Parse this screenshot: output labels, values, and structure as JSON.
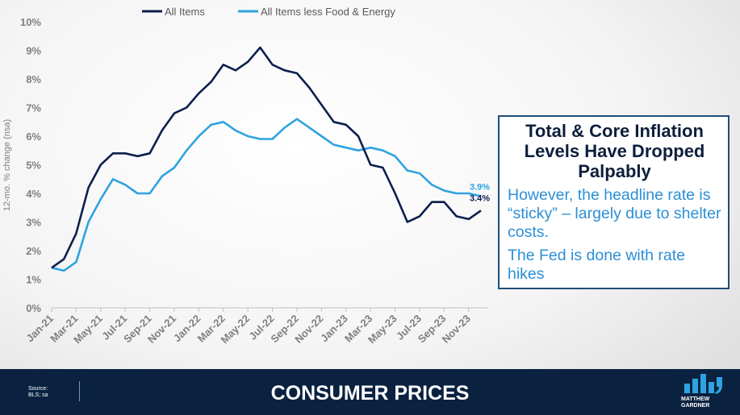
{
  "chart_data": {
    "type": "line",
    "title": "",
    "xlabel": "",
    "ylabel": "12-mo. % change (nsa)",
    "ylim": [
      0,
      10
    ],
    "y_ticks": [
      "0%",
      "1%",
      "2%",
      "3%",
      "4%",
      "5%",
      "6%",
      "7%",
      "8%",
      "9%",
      "10%"
    ],
    "x": [
      "Jan-21",
      "Feb-21",
      "Mar-21",
      "Apr-21",
      "May-21",
      "Jun-21",
      "Jul-21",
      "Aug-21",
      "Sep-21",
      "Oct-21",
      "Nov-21",
      "Dec-21",
      "Jan-22",
      "Feb-22",
      "Mar-22",
      "Apr-22",
      "May-22",
      "Jun-22",
      "Jul-22",
      "Aug-22",
      "Sep-22",
      "Oct-22",
      "Nov-22",
      "Dec-22",
      "Jan-23",
      "Feb-23",
      "Mar-23",
      "Apr-23",
      "May-23",
      "Jun-23",
      "Jul-23",
      "Aug-23",
      "Sep-23",
      "Oct-23",
      "Nov-23",
      "Dec-23"
    ],
    "x_tick_labels": [
      "Jan-21",
      "Mar-21",
      "May-21",
      "Jul-21",
      "Sep-21",
      "Nov-21",
      "Jan-22",
      "Mar-22",
      "May-22",
      "Jul-22",
      "Sep-22",
      "Nov-22",
      "Jan-23",
      "Mar-23",
      "May-23",
      "Jul-23",
      "Sep-23",
      "Nov-23"
    ],
    "grid": false,
    "legend_position": "top",
    "series": [
      {
        "name": "All Items",
        "color": "#0d1f4e",
        "values": [
          1.4,
          1.7,
          2.6,
          4.2,
          5.0,
          5.4,
          5.4,
          5.3,
          5.4,
          6.2,
          6.8,
          7.0,
          7.5,
          7.9,
          8.5,
          8.3,
          8.6,
          9.1,
          8.5,
          8.3,
          8.2,
          7.7,
          7.1,
          6.5,
          6.4,
          6.0,
          5.0,
          4.9,
          4.0,
          3.0,
          3.2,
          3.7,
          3.7,
          3.2,
          3.1,
          3.4
        ],
        "end_label": "3.4%"
      },
      {
        "name": "All Items less Food & Energy",
        "color": "#2ea3e0",
        "values": [
          1.4,
          1.3,
          1.6,
          3.0,
          3.8,
          4.5,
          4.3,
          4.0,
          4.0,
          4.6,
          4.9,
          5.5,
          6.0,
          6.4,
          6.5,
          6.2,
          6.0,
          5.9,
          5.9,
          6.3,
          6.6,
          6.3,
          6.0,
          5.7,
          5.6,
          5.5,
          5.6,
          5.5,
          5.3,
          4.8,
          4.7,
          4.3,
          4.1,
          4.0,
          4.0,
          3.9
        ],
        "end_label": "3.9%"
      }
    ]
  },
  "callout": {
    "title": "Total & Core Inflation Levels Have Dropped Palpably",
    "text1": "However, the headline rate is “sticky” – largely due to shelter costs.",
    "text2": "The Fed is done with rate hikes"
  },
  "footer": {
    "title": "CONSUMER PRICES",
    "source_line1": "Source:",
    "source_line2": "BLS; sa",
    "logo_line1": "MATTHEW",
    "logo_line2": "GARDNER"
  },
  "colors": {
    "footer_bg": "#0a2240",
    "callout_border": "#1f4e79",
    "callout_title": "#0d1f3c",
    "callout_text": "#2c8fd6",
    "logo_bar": "#2ea3e0"
  }
}
